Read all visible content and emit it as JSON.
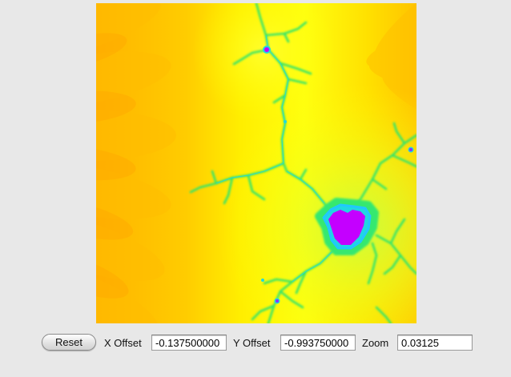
{
  "fractal": {
    "description_colors": {
      "outer": "#ffb300",
      "mid": "#ffd800",
      "inner": "#ffff00",
      "near_set": "#c8ff30",
      "filament": "#2ee86a",
      "edge": "#1fd8e0",
      "set": "#cc00ff"
    }
  },
  "controls": {
    "reset_label": "Reset",
    "x_offset_label": "X Offset",
    "x_offset_value": "-0.137500000",
    "y_offset_label": "Y Offset",
    "y_offset_value": "-0.993750000",
    "zoom_label": "Zoom",
    "zoom_value": "0.03125"
  }
}
